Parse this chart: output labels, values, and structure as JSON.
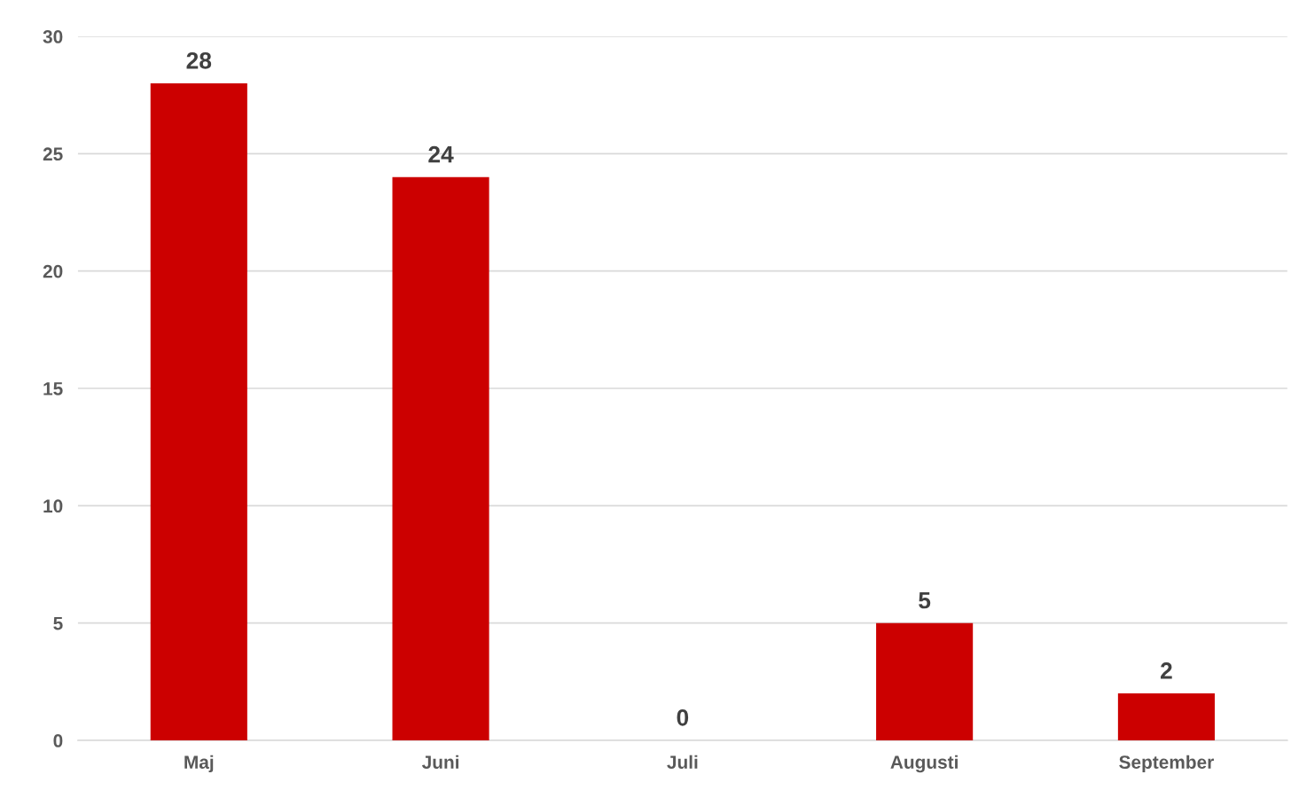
{
  "chart_data": {
    "type": "bar",
    "categories": [
      "Maj",
      "Juni",
      "Juli",
      "Augusti",
      "September"
    ],
    "values": [
      28,
      24,
      0,
      5,
      2
    ],
    "color": "#cc0000",
    "ylim": [
      0,
      30
    ],
    "yticks": [
      0,
      5,
      10,
      15,
      20,
      25,
      30
    ],
    "grid": "y",
    "data_labels": true
  }
}
